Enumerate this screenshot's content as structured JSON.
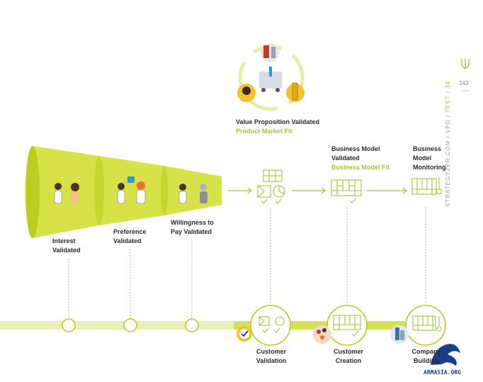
{
  "top_stage": {
    "title": "Value Proposition Validated",
    "subtitle": "Product-Market Fit"
  },
  "funnel_labels": {
    "interest": [
      "Interest",
      "Validated"
    ],
    "preference": [
      "Preference",
      "Validated"
    ],
    "willingness": [
      "Willingness to",
      "Pay Validated"
    ]
  },
  "business_model": {
    "title_1": "Business Model",
    "title_2": "Validated",
    "subtitle": "Business Model Fit"
  },
  "monitoring": [
    "Business",
    "Model",
    "Monitoring"
  ],
  "bottom_stages": {
    "customer_validation": [
      "Customer",
      "Validation"
    ],
    "customer_creation": [
      "Customer",
      "Creation"
    ],
    "company_building": [
      "Company",
      "Building"
    ]
  },
  "sidebar": {
    "site": "STRATEGYZER.COM / VPD / ",
    "section": "TEST / 34",
    "page_number": "243"
  },
  "watermark": "ARMASIA.ORG",
  "colors": {
    "lime": "#d4e157",
    "lime_dark": "#b8c92a",
    "green": "#a3c43a",
    "text": "#2b2b2b"
  }
}
